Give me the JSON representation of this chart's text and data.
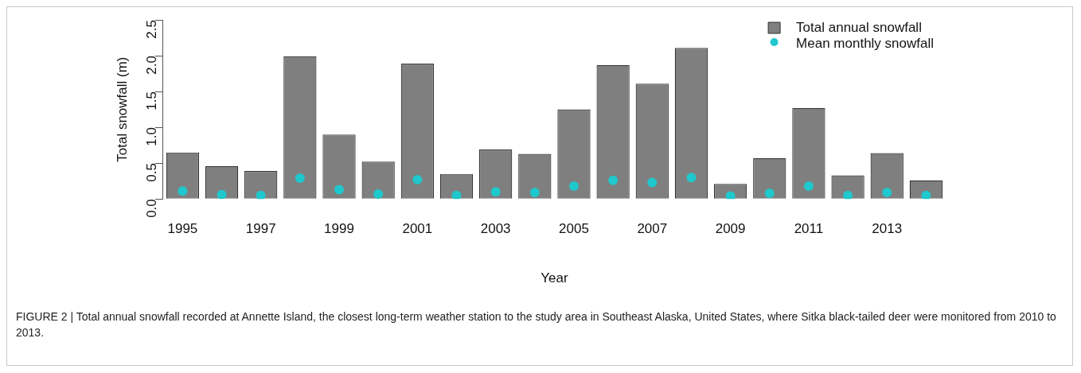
{
  "chart_data": {
    "type": "bar",
    "xlabel": "Year",
    "ylabel": "Total snowfall (m)",
    "categories": [
      "1995",
      null,
      "1997",
      null,
      "1999",
      null,
      "2001",
      null,
      "2003",
      null,
      "2005",
      null,
      "2007",
      null,
      "2009",
      null,
      "2011",
      null,
      "2013",
      null
    ],
    "series": [
      {
        "name": "Total annual snowfall",
        "color": "#7f7f7f",
        "values": [
          0.65,
          0.46,
          0.39,
          1.99,
          0.9,
          0.52,
          1.89,
          0.35,
          0.69,
          0.63,
          1.25,
          1.87,
          1.61,
          2.11,
          0.21,
          0.57,
          1.27,
          0.33,
          0.64,
          0.26
        ]
      },
      {
        "name": "Mean monthly snowfall",
        "type": "scatter",
        "color": "#1fc8cc",
        "values": [
          0.11,
          0.06,
          0.05,
          0.29,
          0.13,
          0.07,
          0.27,
          0.05,
          0.1,
          0.09,
          0.18,
          0.26,
          0.23,
          0.3,
          0.04,
          0.08,
          0.18,
          0.05,
          0.09,
          0.05
        ]
      }
    ],
    "ylim": [
      0,
      2.5
    ],
    "yticks": [
      {
        "value": 0,
        "label": "0.0"
      },
      0.5,
      {
        "value": 1,
        "label": "1.0"
      },
      1.5,
      {
        "value": 2,
        "label": "2.0"
      },
      2.5
    ],
    "grid": false,
    "legend": "top right",
    "marker": "circle",
    "annotations": [
      "FIGURE 2 | Total annual snowfall recorded at Annette Island, the closest long-term weather station to the study area in Southeast Alaska, United States, where Sitka black-tailed deer were monitored from 2010 to 2013."
    ]
  }
}
